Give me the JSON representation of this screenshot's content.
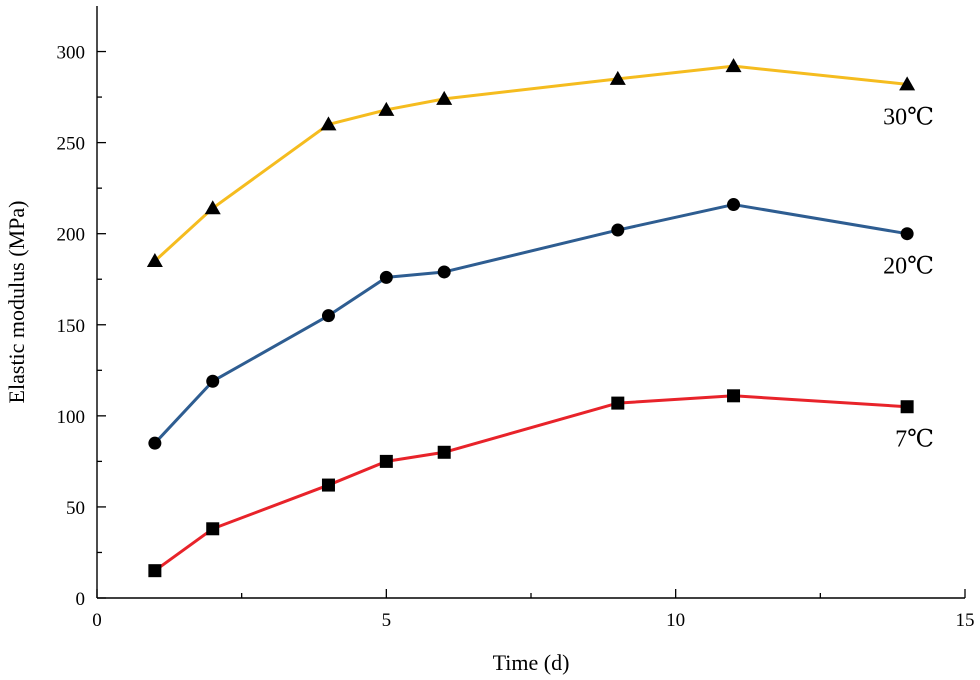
{
  "chart_data": {
    "type": "line",
    "title": "",
    "xlabel": "Time (d)",
    "ylabel": "Elastic modulus (MPa)",
    "xlim": [
      0,
      15
    ],
    "ylim": [
      0,
      325
    ],
    "xticks": [
      0,
      5,
      10,
      15
    ],
    "xticks_minor": [
      2.5,
      7.5,
      12.5
    ],
    "yticks": [
      0,
      50,
      100,
      150,
      200,
      250,
      300
    ],
    "yticks_minor": [
      25,
      75,
      125,
      175,
      225,
      275
    ],
    "x": [
      1,
      2,
      4,
      5,
      6,
      9,
      11,
      14
    ],
    "series": [
      {
        "name": "30℃",
        "label": "30℃",
        "color": "#f5bc1f",
        "marker": "triangle",
        "values": [
          185,
          214,
          260,
          268,
          274,
          285,
          292,
          282
        ]
      },
      {
        "name": "20℃",
        "label": "20℃",
        "color": "#2e5d91",
        "marker": "circle",
        "values": [
          85,
          119,
          155,
          176,
          179,
          202,
          216,
          200
        ]
      },
      {
        "name": "7℃",
        "label": "7℃",
        "color": "#e8232a",
        "marker": "square",
        "values": [
          15,
          38,
          62,
          75,
          80,
          107,
          111,
          105
        ]
      }
    ],
    "grid": false,
    "legend": "inline labels at right end of each series"
  }
}
